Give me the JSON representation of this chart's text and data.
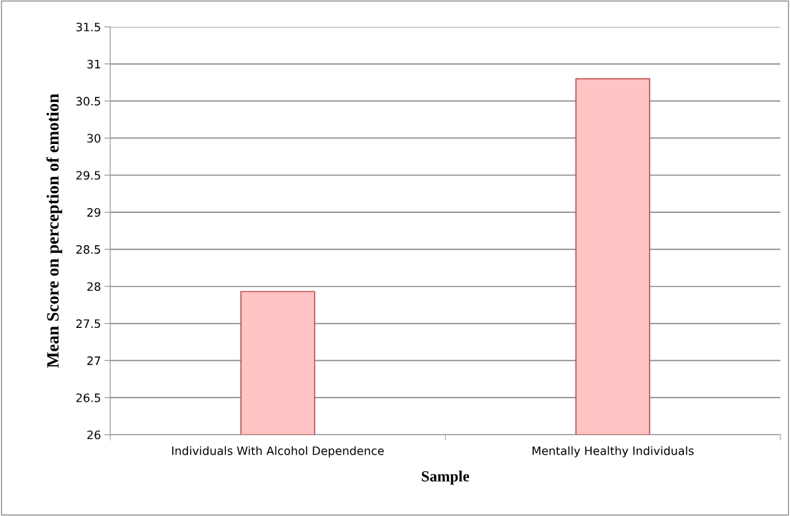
{
  "chart_data": {
    "type": "bar",
    "xlabel": "Sample",
    "ylabel": "Mean Score on perception of emotion",
    "categories": [
      "Individuals With Alcohol Dependence",
      "Mentally Healthy Individuals"
    ],
    "values": [
      27.93,
      30.8
    ],
    "color": "#ffc4c4",
    "ylim": [
      26,
      31.5
    ],
    "yticks": [
      26,
      26.5,
      27,
      27.5,
      28,
      28.5,
      29,
      29.5,
      30,
      30.5,
      31,
      31.5
    ],
    "grid": "y"
  }
}
